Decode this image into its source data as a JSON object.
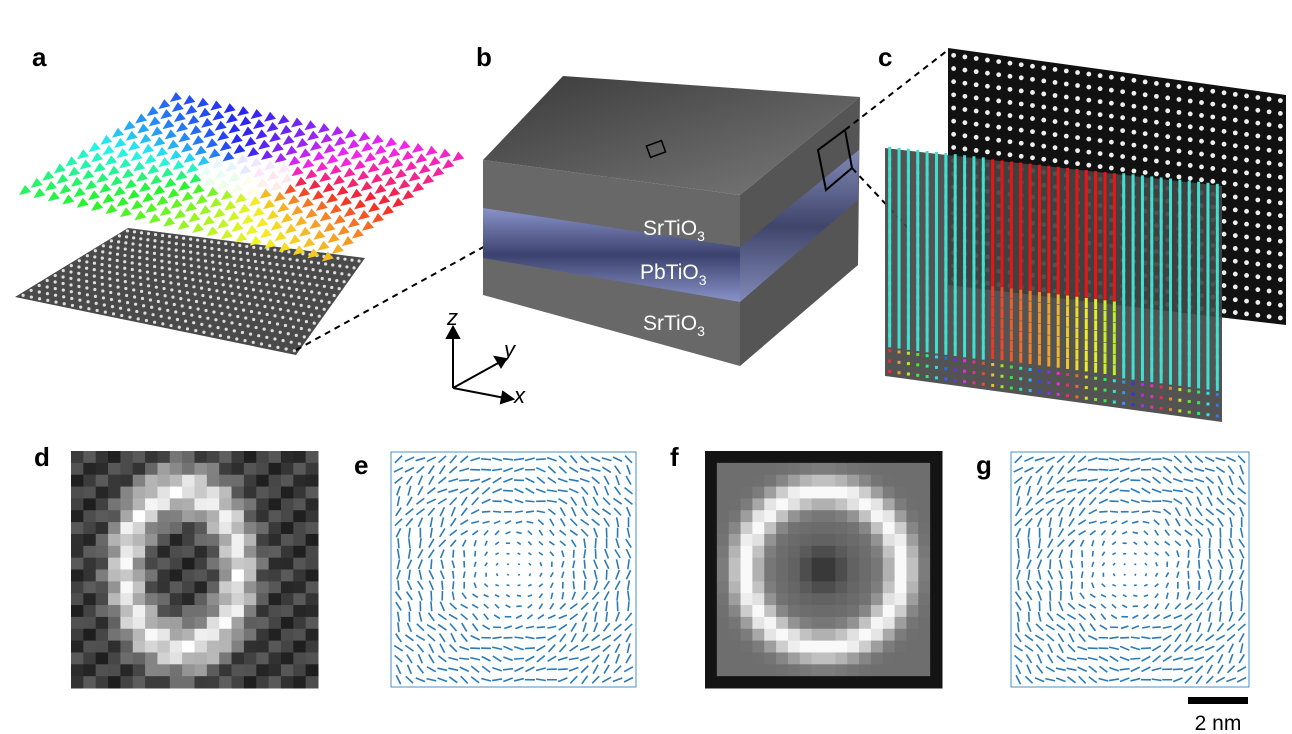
{
  "panels": {
    "a": "a",
    "b": "b",
    "c": "c",
    "d": "d",
    "e": "e",
    "f": "f",
    "g": "g"
  },
  "layers": [
    {
      "text": "SrTiO",
      "sub": "3"
    },
    {
      "text": "PbTiO",
      "sub": "3"
    },
    {
      "text": "SrTiO",
      "sub": "3"
    }
  ],
  "axes": {
    "z": "z",
    "y": "y",
    "x": "x"
  },
  "scale_bar": "2 nm"
}
